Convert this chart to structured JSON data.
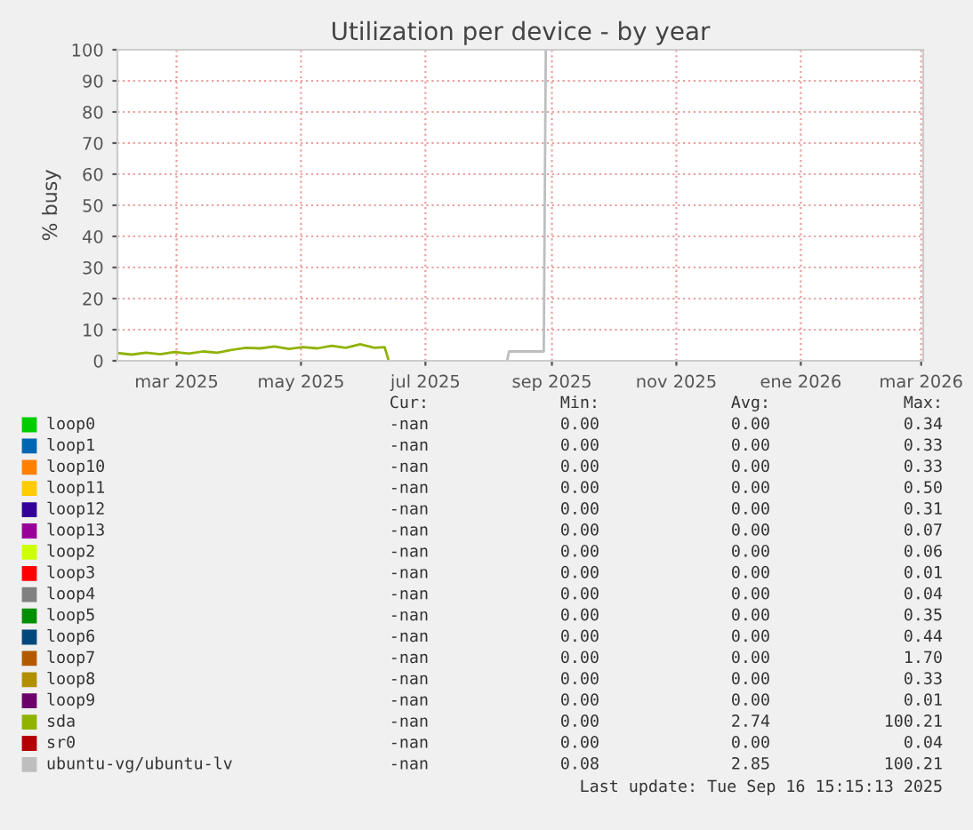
{
  "chart_data": {
    "type": "line",
    "title": "Utilization per device - by year",
    "ylabel": "% busy",
    "xlim": [
      "2025-01-31",
      "2026-03-02"
    ],
    "ylim": [
      0,
      100
    ],
    "yticks": [
      0,
      10,
      20,
      30,
      40,
      50,
      60,
      70,
      80,
      90,
      100
    ],
    "xticks": [
      {
        "value": "2025-03-01",
        "label": "mar 2025"
      },
      {
        "value": "2025-05-01",
        "label": "may 2025"
      },
      {
        "value": "2025-07-01",
        "label": "jul 2025"
      },
      {
        "value": "2025-09-01",
        "label": "sep 2025"
      },
      {
        "value": "2025-11-01",
        "label": "nov 2025"
      },
      {
        "value": "2026-01-01",
        "label": "ene 2026"
      },
      {
        "value": "2026-03-01",
        "label": "mar 2026"
      }
    ],
    "grid": true,
    "legend": "bottom",
    "x": [
      "2025-01-31",
      "2025-02-07",
      "2025-02-14",
      "2025-02-21",
      "2025-02-28",
      "2025-03-07",
      "2025-03-14",
      "2025-03-21",
      "2025-03-28",
      "2025-04-04",
      "2025-04-11",
      "2025-04-18",
      "2025-04-25",
      "2025-05-02",
      "2025-05-09",
      "2025-05-16",
      "2025-05-23",
      "2025-05-30",
      "2025-06-06",
      "2025-06-11",
      "2025-06-13",
      "2025-08-10",
      "2025-08-11",
      "2025-08-28",
      "2025-08-29"
    ],
    "series": [
      {
        "name": "loop0",
        "color": "#00cc00",
        "values": [
          null,
          null,
          null,
          null,
          null,
          null,
          null,
          null,
          null,
          null,
          null,
          null,
          null,
          null,
          null,
          null,
          null,
          null,
          null,
          null,
          null,
          null,
          null,
          null,
          null
        ]
      },
      {
        "name": "loop1",
        "color": "#0066b3",
        "values": [
          null,
          null,
          null,
          null,
          null,
          null,
          null,
          null,
          null,
          null,
          null,
          null,
          null,
          null,
          null,
          null,
          null,
          null,
          null,
          null,
          null,
          null,
          null,
          null,
          null
        ]
      },
      {
        "name": "loop10",
        "color": "#ff8000",
        "values": [
          null,
          null,
          null,
          null,
          null,
          null,
          null,
          null,
          null,
          null,
          null,
          null,
          null,
          null,
          null,
          null,
          null,
          null,
          null,
          null,
          null,
          null,
          null,
          null,
          null
        ]
      },
      {
        "name": "loop11",
        "color": "#ffcc00",
        "values": [
          null,
          null,
          null,
          null,
          null,
          null,
          null,
          null,
          null,
          null,
          null,
          null,
          null,
          null,
          null,
          null,
          null,
          null,
          null,
          null,
          null,
          null,
          null,
          null,
          null
        ]
      },
      {
        "name": "loop12",
        "color": "#330099",
        "values": [
          null,
          null,
          null,
          null,
          null,
          null,
          null,
          null,
          null,
          null,
          null,
          null,
          null,
          null,
          null,
          null,
          null,
          null,
          null,
          null,
          null,
          null,
          null,
          null,
          null
        ]
      },
      {
        "name": "loop13",
        "color": "#990099",
        "values": [
          null,
          null,
          null,
          null,
          null,
          null,
          null,
          null,
          null,
          null,
          null,
          null,
          null,
          null,
          null,
          null,
          null,
          null,
          null,
          null,
          null,
          null,
          null,
          null,
          null
        ]
      },
      {
        "name": "loop2",
        "color": "#ccff00",
        "values": [
          null,
          null,
          null,
          null,
          null,
          null,
          null,
          null,
          null,
          null,
          null,
          null,
          null,
          null,
          null,
          null,
          null,
          null,
          null,
          null,
          null,
          null,
          null,
          null,
          null
        ]
      },
      {
        "name": "loop3",
        "color": "#ff0000",
        "values": [
          null,
          null,
          null,
          null,
          null,
          null,
          null,
          null,
          null,
          null,
          null,
          null,
          null,
          null,
          null,
          null,
          null,
          null,
          null,
          null,
          null,
          null,
          null,
          null,
          null
        ]
      },
      {
        "name": "loop4",
        "color": "#808080",
        "values": [
          null,
          null,
          null,
          null,
          null,
          null,
          null,
          null,
          null,
          null,
          null,
          null,
          null,
          null,
          null,
          null,
          null,
          null,
          null,
          null,
          null,
          null,
          null,
          null,
          null
        ]
      },
      {
        "name": "loop5",
        "color": "#008f00",
        "values": [
          null,
          null,
          null,
          null,
          null,
          null,
          null,
          null,
          null,
          null,
          null,
          null,
          null,
          null,
          null,
          null,
          null,
          null,
          null,
          null,
          null,
          null,
          null,
          null,
          null
        ]
      },
      {
        "name": "loop6",
        "color": "#00487d",
        "values": [
          null,
          null,
          null,
          null,
          null,
          null,
          null,
          null,
          null,
          null,
          null,
          null,
          null,
          null,
          null,
          null,
          null,
          null,
          null,
          null,
          null,
          null,
          null,
          null,
          null
        ]
      },
      {
        "name": "loop7",
        "color": "#b35a00",
        "values": [
          null,
          null,
          null,
          null,
          null,
          null,
          null,
          null,
          null,
          null,
          null,
          null,
          null,
          null,
          null,
          null,
          null,
          null,
          null,
          null,
          null,
          null,
          null,
          null,
          null
        ]
      },
      {
        "name": "loop8",
        "color": "#b38f00",
        "values": [
          null,
          null,
          null,
          null,
          null,
          null,
          null,
          null,
          null,
          null,
          null,
          null,
          null,
          null,
          null,
          null,
          null,
          null,
          null,
          null,
          null,
          null,
          null,
          null,
          null
        ]
      },
      {
        "name": "loop9",
        "color": "#6b006b",
        "values": [
          null,
          null,
          null,
          null,
          null,
          null,
          null,
          null,
          null,
          null,
          null,
          null,
          null,
          null,
          null,
          null,
          null,
          null,
          null,
          null,
          null,
          null,
          null,
          null,
          null
        ]
      },
      {
        "name": "sda",
        "color": "#8fb300",
        "values": [
          2.5,
          2.0,
          2.6,
          2.1,
          2.8,
          2.3,
          3.0,
          2.6,
          3.5,
          4.2,
          4.0,
          4.6,
          3.8,
          4.4,
          4.0,
          4.8,
          4.2,
          5.3,
          4.2,
          4.4,
          0,
          null,
          null,
          null,
          null
        ]
      },
      {
        "name": "sr0",
        "color": "#b30000",
        "values": [
          null,
          null,
          null,
          null,
          null,
          null,
          null,
          null,
          null,
          null,
          null,
          null,
          null,
          null,
          null,
          null,
          null,
          null,
          null,
          null,
          null,
          null,
          null,
          null,
          null
        ]
      },
      {
        "name": "ubuntu-vg/ubuntu-lv",
        "color": "#bebebe",
        "values": [
          null,
          null,
          null,
          null,
          null,
          null,
          null,
          null,
          null,
          null,
          null,
          null,
          null,
          null,
          null,
          null,
          null,
          null,
          null,
          null,
          null,
          0,
          3,
          3,
          100
        ]
      }
    ],
    "annotations": [
      "Cur:",
      "Min:",
      "Avg:",
      "Max:",
      "-nan",
      "0.00",
      "0.00",
      "0.34",
      "-nan",
      "0.00",
      "0.00",
      "0.33",
      "-nan",
      "0.00",
      "0.00",
      "0.33",
      "-nan",
      "0.00",
      "0.00",
      "0.50",
      "-nan",
      "0.00",
      "0.00",
      "0.31",
      "-nan",
      "0.00",
      "0.00",
      "0.07",
      "-nan",
      "0.00",
      "0.00",
      "0.06",
      "-nan",
      "0.00",
      "0.00",
      "0.01",
      "-nan",
      "0.00",
      "0.00",
      "0.04",
      "-nan",
      "0.00",
      "0.00",
      "0.35",
      "-nan",
      "0.00",
      "0.00",
      "0.44",
      "-nan",
      "0.00",
      "0.00",
      "1.70",
      "-nan",
      "0.00",
      "0.00",
      "0.33",
      "-nan",
      "0.00",
      "0.00",
      "0.01",
      "-nan",
      "0.00",
      "2.74",
      "100.21",
      "-nan",
      "0.00",
      "0.00",
      "0.04",
      "-nan",
      "0.08",
      "2.85",
      "100.21",
      "Last update: Tue Sep 16 15:15:13 2025"
    ]
  }
}
